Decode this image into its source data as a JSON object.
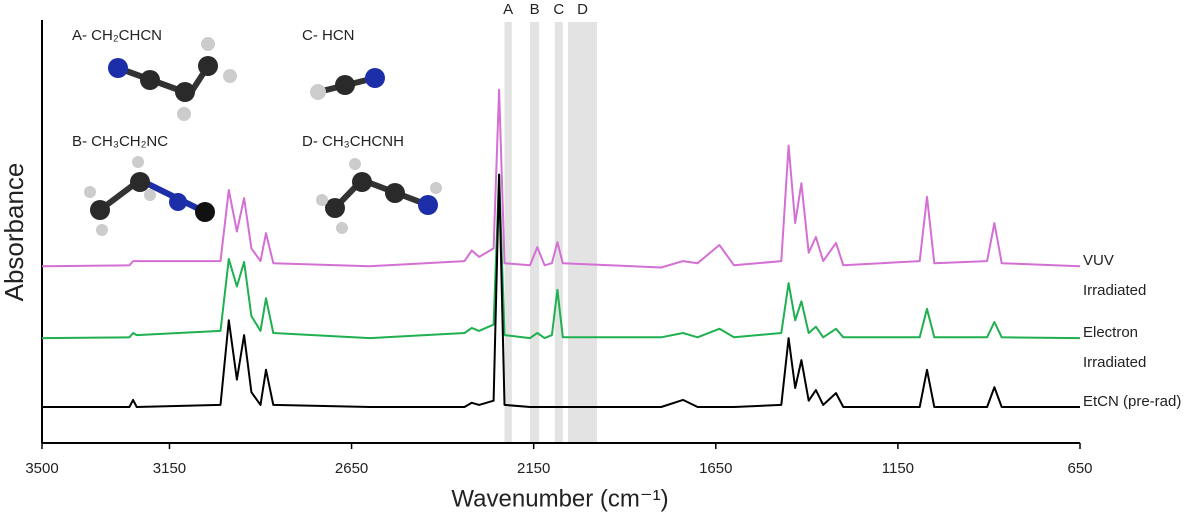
{
  "chart_data": {
    "type": "line",
    "x_label": "Wavenumber (cm⁻¹)",
    "y_label": "Absorbance",
    "xlim": [
      3500,
      650
    ],
    "xticks": [
      3500,
      3150,
      2650,
      2150,
      1650,
      1150,
      650
    ],
    "ylim": [
      0,
      100
    ],
    "x": [
      3500,
      3260,
      3250,
      3240,
      3010,
      2987,
      2965,
      2945,
      2925,
      2900,
      2885,
      2865,
      2600,
      2340,
      2320,
      2300,
      2260,
      2245,
      2230,
      2160,
      2140,
      2120,
      2100,
      2085,
      2070,
      1800,
      1740,
      1700,
      1640,
      1600,
      1470,
      1450,
      1432,
      1415,
      1395,
      1375,
      1355,
      1320,
      1300,
      1090,
      1070,
      1050,
      905,
      885,
      865,
      650
    ],
    "series": [
      {
        "name": "VUV Irradiated",
        "color": "#d46fd4",
        "values": [
          41.8,
          42,
          43,
          43,
          43,
          59.8,
          50,
          57.9,
          46,
          43,
          49.6,
          42.5,
          41.8,
          43,
          45.5,
          44,
          46,
          83.5,
          42.5,
          42,
          46.3,
          42,
          42.5,
          47.5,
          42.5,
          41.5,
          43,
          42.5,
          46.8,
          42,
          43,
          70.3,
          52,
          61.4,
          45,
          48.7,
          43,
          47.3,
          42,
          43,
          58.2,
          42.5,
          43,
          52,
          42.5,
          41.8
        ]
      },
      {
        "name": "Electron Irradiated",
        "color": "#1fb04f",
        "values": [
          24.8,
          25,
          26,
          25.5,
          26.5,
          43.5,
          37,
          42.8,
          30,
          26.5,
          34.2,
          26,
          24.8,
          26,
          27.2,
          26.5,
          28,
          63.5,
          25.5,
          24.8,
          26,
          24.8,
          25.5,
          36.2,
          25,
          25,
          26,
          25,
          27,
          25,
          26,
          37.8,
          29,
          33.5,
          26,
          27.5,
          25,
          27,
          25,
          25,
          31.7,
          25,
          25,
          28.6,
          25,
          24.8
        ]
      },
      {
        "name": "EtCN (pre-rad)",
        "color": "#000000",
        "values": [
          8.5,
          8.5,
          10.2,
          8.5,
          9,
          29,
          15,
          25.5,
          12,
          9,
          17.3,
          9,
          8.5,
          8.5,
          9.5,
          9,
          10,
          63.4,
          9,
          8.5,
          8.5,
          8.5,
          8.5,
          8.5,
          8.5,
          8.5,
          10.2,
          8.5,
          8.5,
          8.5,
          9,
          24.8,
          13,
          19.6,
          10,
          12.5,
          9,
          11.8,
          8.5,
          8.5,
          17.3,
          8.5,
          8.5,
          13.2,
          8.5,
          8.5
        ]
      }
    ],
    "bands": [
      {
        "label": "A",
        "range": [
          2230,
          2210
        ]
      },
      {
        "label": "B",
        "range": [
          2160,
          2135
        ]
      },
      {
        "label": "C",
        "range": [
          2092,
          2070
        ]
      },
      {
        "label": "D",
        "range": [
          2056,
          1976
        ]
      }
    ],
    "annotations": [
      "A- CH₂CHCN",
      "B- CH₃CH₂NC",
      "C- HCN",
      "D- CH₃CHCNH"
    ]
  }
}
